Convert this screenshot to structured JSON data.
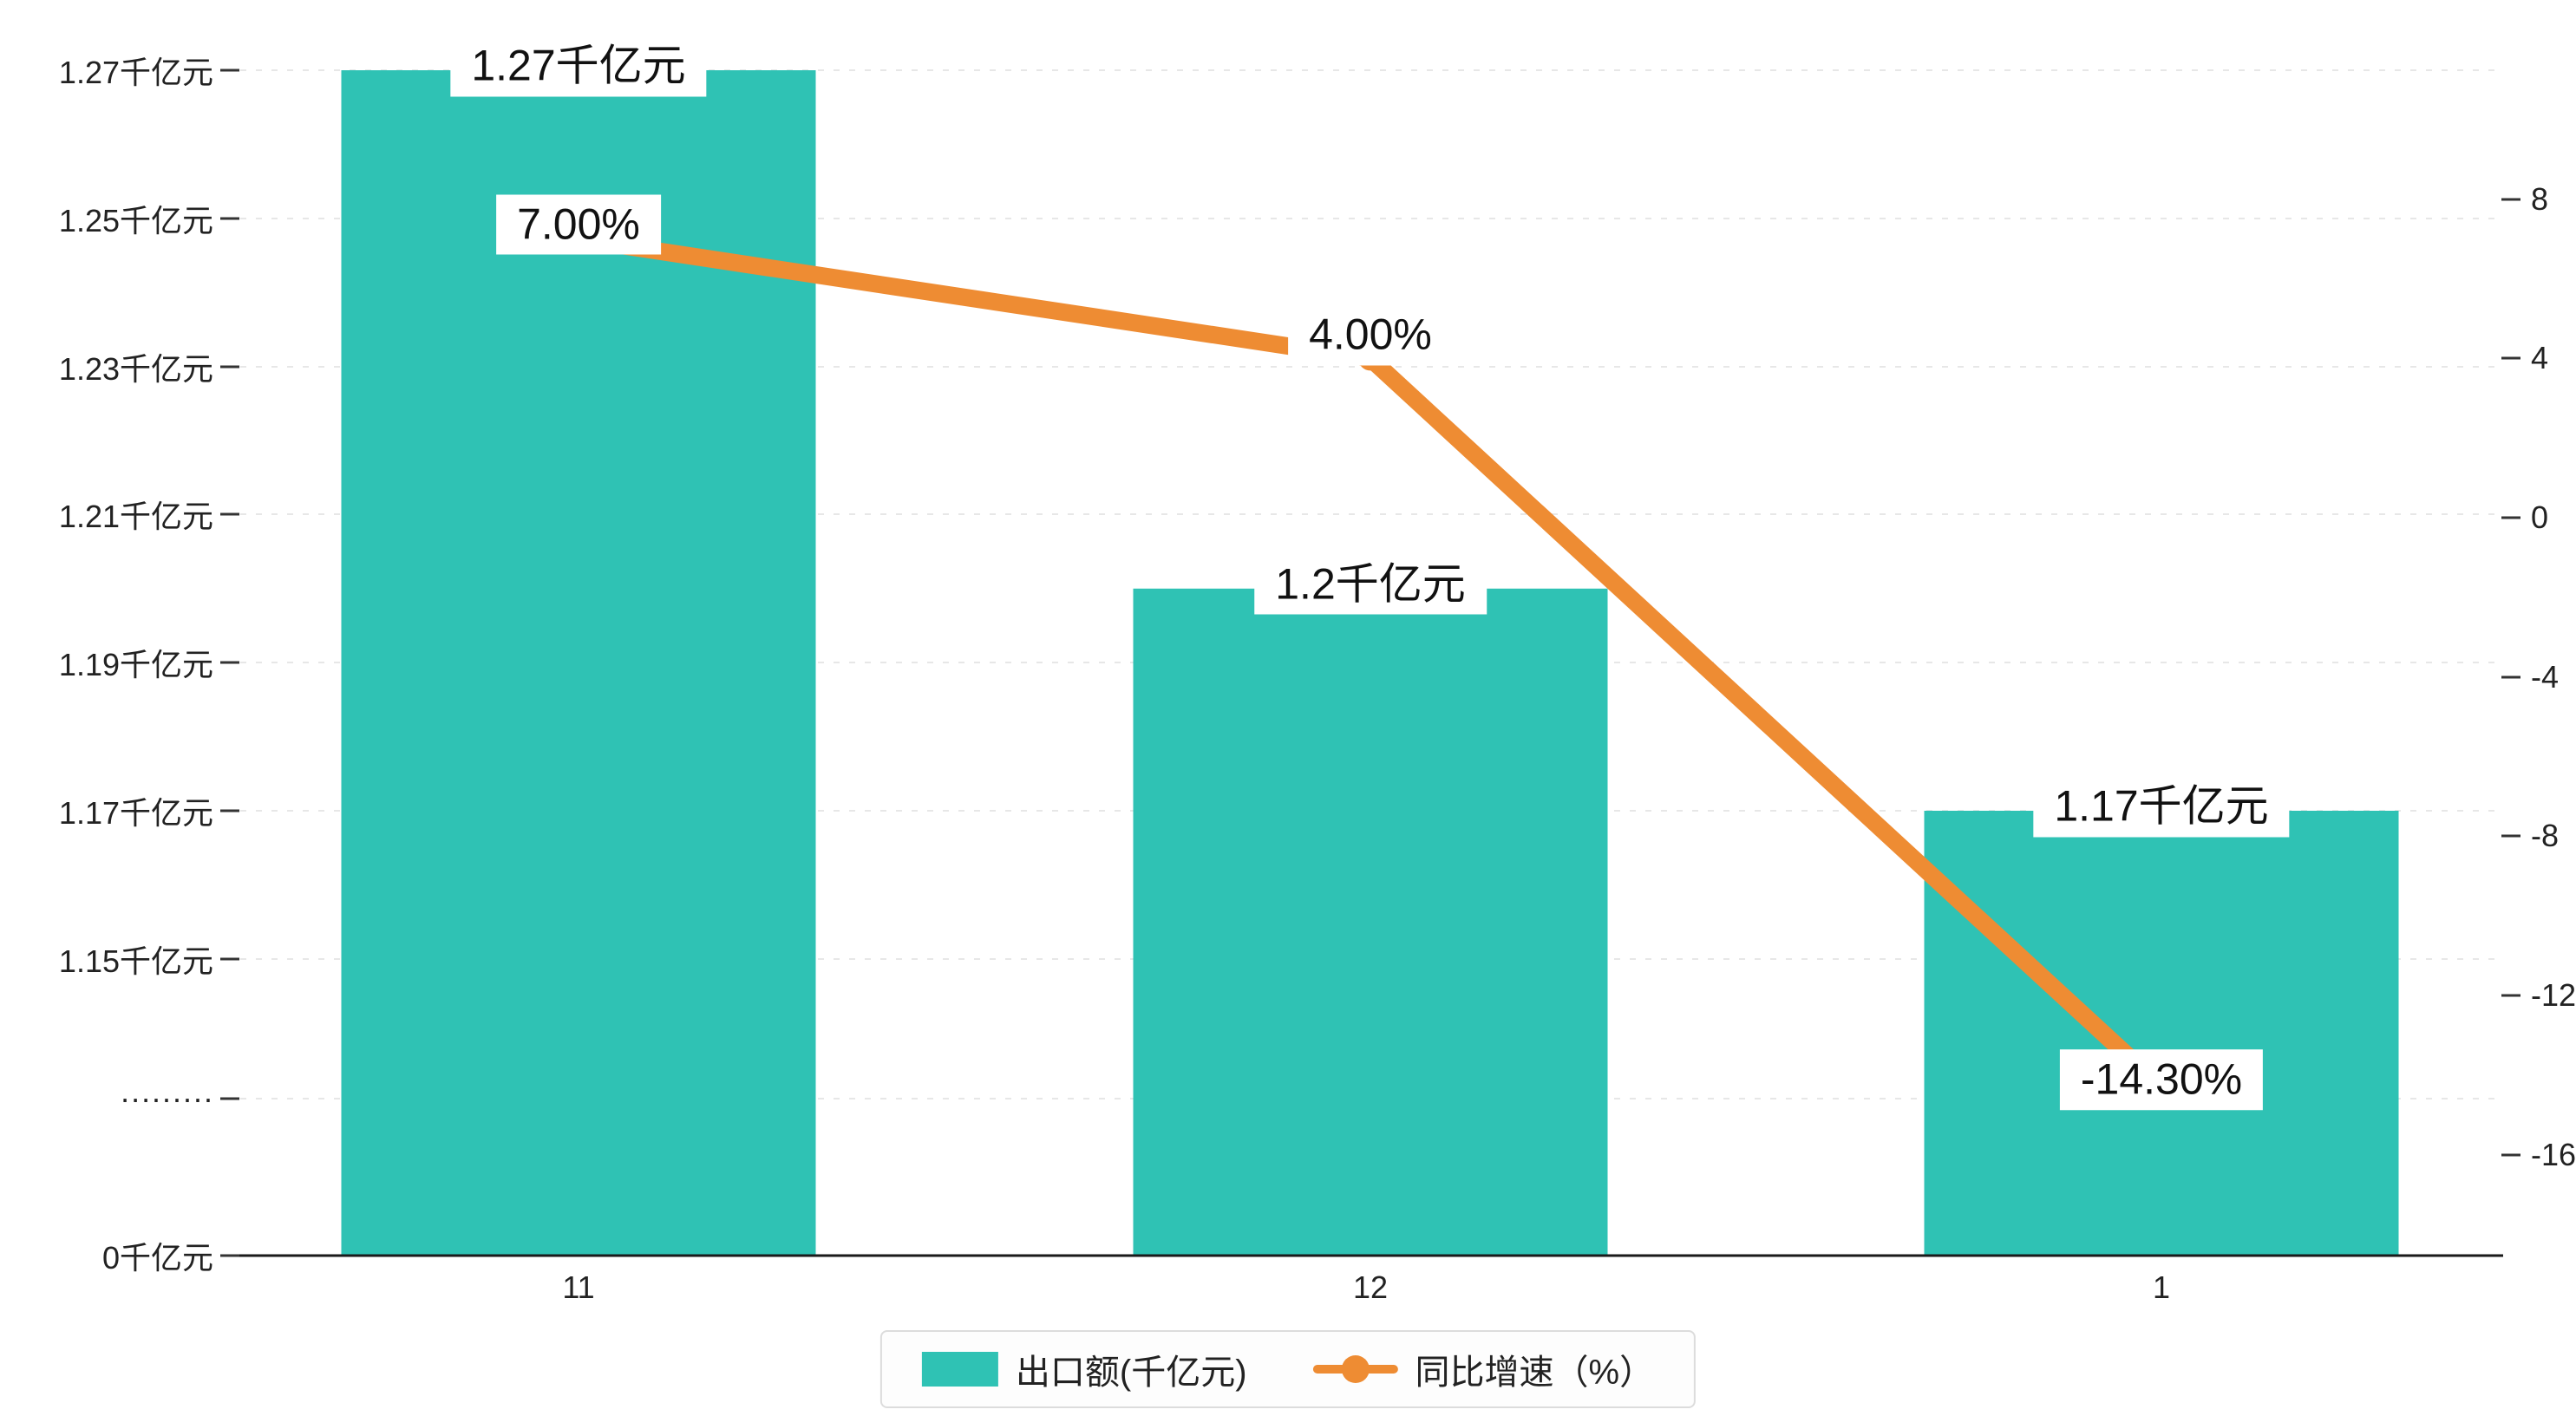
{
  "chart_data": {
    "type": "bar",
    "combo": "bar+line",
    "categories": [
      "11",
      "12",
      "1"
    ],
    "series": [
      {
        "name": "出口额(千亿元)",
        "type": "bar",
        "axis": "left",
        "values": [
          1.27,
          1.2,
          1.17
        ],
        "value_labels": [
          "1.27千亿元",
          "1.2千亿元",
          "1.17千亿元"
        ],
        "color": "#2fc2b4"
      },
      {
        "name": "同比增速（%）",
        "type": "line",
        "axis": "right",
        "values": [
          7.0,
          4.0,
          -14.3
        ],
        "value_labels": [
          "7.00%",
          "4.00%",
          "-14.30%"
        ],
        "color": "#ee8c33"
      }
    ],
    "left_axis": {
      "unit": "千亿元",
      "broken_axis": true,
      "tick_labels": [
        "1.27千亿元",
        "1.25千亿元",
        "1.23千亿元",
        "1.21千亿元",
        "1.19千亿元",
        "1.17千亿元",
        "1.15千亿元",
        "·········",
        "0千亿元"
      ]
    },
    "right_axis": {
      "range": [
        -16,
        8
      ],
      "tick_labels": [
        "8",
        "4",
        "0",
        "-4",
        "-8",
        "-12",
        "-16"
      ]
    },
    "grid": true,
    "legend_position": "bottom"
  },
  "legend": {
    "items": [
      {
        "label": "出口额(千亿元)",
        "marker": "bar-swatch"
      },
      {
        "label": "同比增速（%）",
        "marker": "line-dot"
      }
    ]
  },
  "colors": {
    "bar": "#2fc2b4",
    "line": "#ee8c33",
    "grid": "#e7e7e7",
    "axis": "#1a1a1a",
    "tick": "#333333",
    "label_bg": "#ffffff"
  }
}
